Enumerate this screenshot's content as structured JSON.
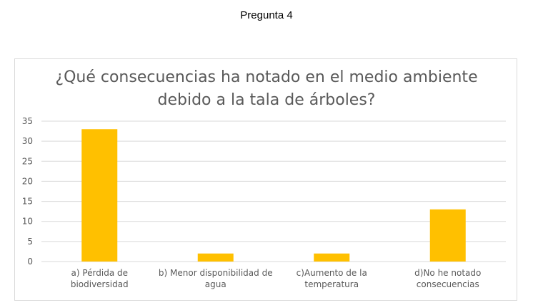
{
  "page": {
    "heading": "Pregunta 4"
  },
  "chart_data": {
    "type": "bar",
    "title_lines": [
      "¿Qué consecuencias ha notado en el medio ambiente",
      "debido a la tala de árboles?"
    ],
    "categories": [
      [
        "a) Pérdida de",
        "biodiversidad"
      ],
      [
        "b) Menor disponibilidad de",
        "agua"
      ],
      [
        "c)Aumento de la",
        "temperatura"
      ],
      [
        "d)No he notado",
        "consecuencias"
      ]
    ],
    "values": [
      33,
      2,
      2,
      13
    ],
    "ylim": [
      0,
      35
    ],
    "yticks": [
      0,
      5,
      10,
      15,
      20,
      25,
      30,
      35
    ],
    "grid": true,
    "bar_color": "#ffc000",
    "grid_color": "#d9d9d9",
    "text_color": "#595959"
  }
}
